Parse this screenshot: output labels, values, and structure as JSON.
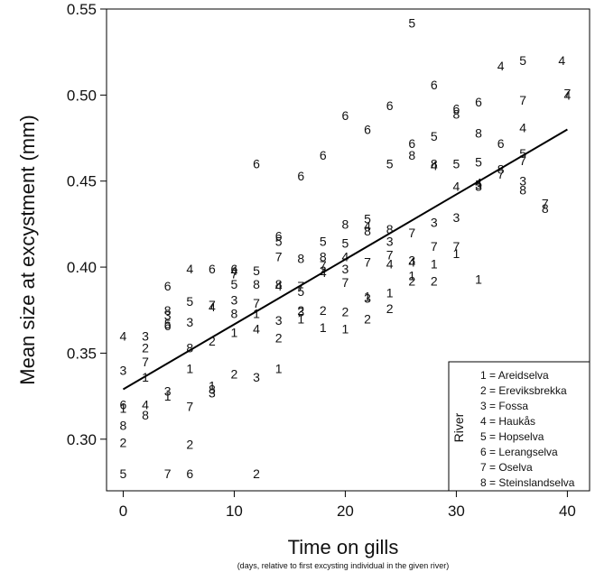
{
  "chart_data": {
    "type": "scatter",
    "title": "",
    "xlabel": "Time on gills",
    "xlabel_sub": "(days, relative to first excysting individual in the given river)",
    "ylabel": "Mean size at excystment (mm)",
    "xlim": [
      -1.5,
      42
    ],
    "ylim": [
      0.27,
      0.55
    ],
    "x_ticks": [
      0,
      10,
      20,
      30,
      40
    ],
    "y_ticks": [
      0.3,
      0.35,
      0.4,
      0.45,
      0.5,
      0.55
    ],
    "y_tick_labels": [
      "0.30",
      "0.35",
      "0.40",
      "0.45",
      "0.50",
      "0.55"
    ],
    "marker": "river number (1–8) drawn as text",
    "legend": {
      "title": "River",
      "placement": "bottom-right",
      "entries": [
        "1 = Areidselva",
        "2 = Ereviksbrekka",
        "3 = Fossa",
        "4 = Haukås",
        "5 = Hopselva",
        "6 = Lerangselva",
        "7 = Oselva",
        "8 = Steinslandselva"
      ]
    },
    "regression_line": {
      "x": [
        0,
        40
      ],
      "y": [
        0.329,
        0.48
      ]
    },
    "points": [
      {
        "x": 0,
        "y": 0.36,
        "river": "4"
      },
      {
        "x": 0,
        "y": 0.34,
        "river": "3"
      },
      {
        "x": 0,
        "y": 0.32,
        "river": "6"
      },
      {
        "x": 0,
        "y": 0.318,
        "river": "1"
      },
      {
        "x": 0,
        "y": 0.308,
        "river": "8"
      },
      {
        "x": 0,
        "y": 0.298,
        "river": "2"
      },
      {
        "x": 0,
        "y": 0.28,
        "river": "5"
      },
      {
        "x": 2,
        "y": 0.36,
        "river": "3"
      },
      {
        "x": 2,
        "y": 0.353,
        "river": "2"
      },
      {
        "x": 2,
        "y": 0.345,
        "river": "7"
      },
      {
        "x": 2,
        "y": 0.336,
        "river": "1"
      },
      {
        "x": 2,
        "y": 0.32,
        "river": "4"
      },
      {
        "x": 2,
        "y": 0.314,
        "river": "8"
      },
      {
        "x": 4,
        "y": 0.389,
        "river": "6"
      },
      {
        "x": 4,
        "y": 0.375,
        "river": "8"
      },
      {
        "x": 4,
        "y": 0.372,
        "river": "3"
      },
      {
        "x": 4,
        "y": 0.367,
        "river": "5"
      },
      {
        "x": 4,
        "y": 0.366,
        "river": "6"
      },
      {
        "x": 4,
        "y": 0.328,
        "river": "3"
      },
      {
        "x": 4,
        "y": 0.325,
        "river": "1"
      },
      {
        "x": 4,
        "y": 0.28,
        "river": "7"
      },
      {
        "x": 6,
        "y": 0.399,
        "river": "4"
      },
      {
        "x": 6,
        "y": 0.38,
        "river": "5"
      },
      {
        "x": 6,
        "y": 0.368,
        "river": "3"
      },
      {
        "x": 6,
        "y": 0.353,
        "river": "8"
      },
      {
        "x": 6,
        "y": 0.341,
        "river": "1"
      },
      {
        "x": 6,
        "y": 0.319,
        "river": "7"
      },
      {
        "x": 6,
        "y": 0.297,
        "river": "2"
      },
      {
        "x": 6,
        "y": 0.28,
        "river": "6"
      },
      {
        "x": 8,
        "y": 0.399,
        "river": "6"
      },
      {
        "x": 8,
        "y": 0.378,
        "river": "7"
      },
      {
        "x": 8,
        "y": 0.377,
        "river": "4"
      },
      {
        "x": 8,
        "y": 0.357,
        "river": "2"
      },
      {
        "x": 8,
        "y": 0.331,
        "river": "1"
      },
      {
        "x": 8,
        "y": 0.329,
        "river": "8"
      },
      {
        "x": 8,
        "y": 0.327,
        "river": "3"
      },
      {
        "x": 10,
        "y": 0.399,
        "river": "6"
      },
      {
        "x": 10,
        "y": 0.398,
        "river": "4"
      },
      {
        "x": 10,
        "y": 0.396,
        "river": "7"
      },
      {
        "x": 10,
        "y": 0.39,
        "river": "5"
      },
      {
        "x": 10,
        "y": 0.381,
        "river": "3"
      },
      {
        "x": 10,
        "y": 0.373,
        "river": "8"
      },
      {
        "x": 10,
        "y": 0.362,
        "river": "1"
      },
      {
        "x": 10,
        "y": 0.338,
        "river": "2"
      },
      {
        "x": 12,
        "y": 0.46,
        "river": "6"
      },
      {
        "x": 12,
        "y": 0.398,
        "river": "5"
      },
      {
        "x": 12,
        "y": 0.39,
        "river": "8"
      },
      {
        "x": 12,
        "y": 0.379,
        "river": "7"
      },
      {
        "x": 12,
        "y": 0.373,
        "river": "1"
      },
      {
        "x": 12,
        "y": 0.364,
        "river": "4"
      },
      {
        "x": 12,
        "y": 0.336,
        "river": "3"
      },
      {
        "x": 12,
        "y": 0.28,
        "river": "2"
      },
      {
        "x": 14,
        "y": 0.418,
        "river": "6"
      },
      {
        "x": 14,
        "y": 0.415,
        "river": "5"
      },
      {
        "x": 14,
        "y": 0.406,
        "river": "7"
      },
      {
        "x": 14,
        "y": 0.39,
        "river": "8"
      },
      {
        "x": 14,
        "y": 0.389,
        "river": "4"
      },
      {
        "x": 14,
        "y": 0.369,
        "river": "3"
      },
      {
        "x": 14,
        "y": 0.359,
        "river": "2"
      },
      {
        "x": 14,
        "y": 0.341,
        "river": "1"
      },
      {
        "x": 16,
        "y": 0.453,
        "river": "6"
      },
      {
        "x": 16,
        "y": 0.405,
        "river": "8"
      },
      {
        "x": 16,
        "y": 0.389,
        "river": "7"
      },
      {
        "x": 16,
        "y": 0.386,
        "river": "5"
      },
      {
        "x": 16,
        "y": 0.375,
        "river": "2"
      },
      {
        "x": 16,
        "y": 0.374,
        "river": "3"
      },
      {
        "x": 16,
        "y": 0.37,
        "river": "1"
      },
      {
        "x": 18,
        "y": 0.465,
        "river": "6"
      },
      {
        "x": 18,
        "y": 0.415,
        "river": "5"
      },
      {
        "x": 18,
        "y": 0.406,
        "river": "8"
      },
      {
        "x": 18,
        "y": 0.401,
        "river": "7"
      },
      {
        "x": 18,
        "y": 0.398,
        "river": "2"
      },
      {
        "x": 18,
        "y": 0.397,
        "river": "4"
      },
      {
        "x": 18,
        "y": 0.375,
        "river": "2"
      },
      {
        "x": 18,
        "y": 0.365,
        "river": "1"
      },
      {
        "x": 20,
        "y": 0.488,
        "river": "6"
      },
      {
        "x": 20,
        "y": 0.425,
        "river": "8"
      },
      {
        "x": 20,
        "y": 0.414,
        "river": "5"
      },
      {
        "x": 20,
        "y": 0.406,
        "river": "4"
      },
      {
        "x": 20,
        "y": 0.399,
        "river": "3"
      },
      {
        "x": 20,
        "y": 0.391,
        "river": "7"
      },
      {
        "x": 20,
        "y": 0.374,
        "river": "2"
      },
      {
        "x": 20,
        "y": 0.364,
        "river": "1"
      },
      {
        "x": 22,
        "y": 0.48,
        "river": "6"
      },
      {
        "x": 22,
        "y": 0.428,
        "river": "5"
      },
      {
        "x": 22,
        "y": 0.424,
        "river": "4"
      },
      {
        "x": 22,
        "y": 0.421,
        "river": "8"
      },
      {
        "x": 22,
        "y": 0.403,
        "river": "7"
      },
      {
        "x": 22,
        "y": 0.383,
        "river": "1"
      },
      {
        "x": 22,
        "y": 0.382,
        "river": "3"
      },
      {
        "x": 22,
        "y": 0.37,
        "river": "2"
      },
      {
        "x": 24,
        "y": 0.494,
        "river": "6"
      },
      {
        "x": 24,
        "y": 0.46,
        "river": "5"
      },
      {
        "x": 24,
        "y": 0.422,
        "river": "8"
      },
      {
        "x": 24,
        "y": 0.415,
        "river": "3"
      },
      {
        "x": 24,
        "y": 0.407,
        "river": "7"
      },
      {
        "x": 24,
        "y": 0.402,
        "river": "4"
      },
      {
        "x": 24,
        "y": 0.385,
        "river": "1"
      },
      {
        "x": 24,
        "y": 0.376,
        "river": "2"
      },
      {
        "x": 26,
        "y": 0.542,
        "river": "5"
      },
      {
        "x": 26,
        "y": 0.472,
        "river": "6"
      },
      {
        "x": 26,
        "y": 0.465,
        "river": "8"
      },
      {
        "x": 26,
        "y": 0.42,
        "river": "7"
      },
      {
        "x": 26,
        "y": 0.404,
        "river": "3"
      },
      {
        "x": 26,
        "y": 0.403,
        "river": "4"
      },
      {
        "x": 26,
        "y": 0.395,
        "river": "1"
      },
      {
        "x": 26,
        "y": 0.392,
        "river": "2"
      },
      {
        "x": 28,
        "y": 0.506,
        "river": "6"
      },
      {
        "x": 28,
        "y": 0.476,
        "river": "5"
      },
      {
        "x": 28,
        "y": 0.46,
        "river": "8"
      },
      {
        "x": 28,
        "y": 0.459,
        "river": "4"
      },
      {
        "x": 28,
        "y": 0.426,
        "river": "3"
      },
      {
        "x": 28,
        "y": 0.412,
        "river": "7"
      },
      {
        "x": 28,
        "y": 0.402,
        "river": "1"
      },
      {
        "x": 28,
        "y": 0.392,
        "river": "2"
      },
      {
        "x": 30,
        "y": 0.492,
        "river": "6"
      },
      {
        "x": 30,
        "y": 0.489,
        "river": "8"
      },
      {
        "x": 30,
        "y": 0.46,
        "river": "5"
      },
      {
        "x": 30,
        "y": 0.447,
        "river": "4"
      },
      {
        "x": 30,
        "y": 0.429,
        "river": "3"
      },
      {
        "x": 30,
        "y": 0.412,
        "river": "7"
      },
      {
        "x": 30,
        "y": 0.408,
        "river": "1"
      },
      {
        "x": 32,
        "y": 0.496,
        "river": "6"
      },
      {
        "x": 32,
        "y": 0.478,
        "river": "8"
      },
      {
        "x": 32,
        "y": 0.461,
        "river": "5"
      },
      {
        "x": 32,
        "y": 0.449,
        "river": "4"
      },
      {
        "x": 32,
        "y": 0.448,
        "river": "5"
      },
      {
        "x": 32,
        "y": 0.447,
        "river": "3"
      },
      {
        "x": 32,
        "y": 0.393,
        "river": "1"
      },
      {
        "x": 34,
        "y": 0.517,
        "river": "4"
      },
      {
        "x": 34,
        "y": 0.472,
        "river": "6"
      },
      {
        "x": 34,
        "y": 0.457,
        "river": "8"
      },
      {
        "x": 34,
        "y": 0.454,
        "river": "7"
      },
      {
        "x": 36,
        "y": 0.52,
        "river": "5"
      },
      {
        "x": 36,
        "y": 0.497,
        "river": "7"
      },
      {
        "x": 36,
        "y": 0.481,
        "river": "4"
      },
      {
        "x": 36,
        "y": 0.466,
        "river": "5"
      },
      {
        "x": 36,
        "y": 0.462,
        "river": "7"
      },
      {
        "x": 36,
        "y": 0.45,
        "river": "3"
      },
      {
        "x": 36,
        "y": 0.445,
        "river": "8"
      },
      {
        "x": 38,
        "y": 0.437,
        "river": "7"
      },
      {
        "x": 38,
        "y": 0.434,
        "river": "8"
      },
      {
        "x": 39.5,
        "y": 0.52,
        "river": "4"
      },
      {
        "x": 40,
        "y": 0.501,
        "river": "7"
      },
      {
        "x": 40,
        "y": 0.5,
        "river": "4"
      }
    ]
  }
}
